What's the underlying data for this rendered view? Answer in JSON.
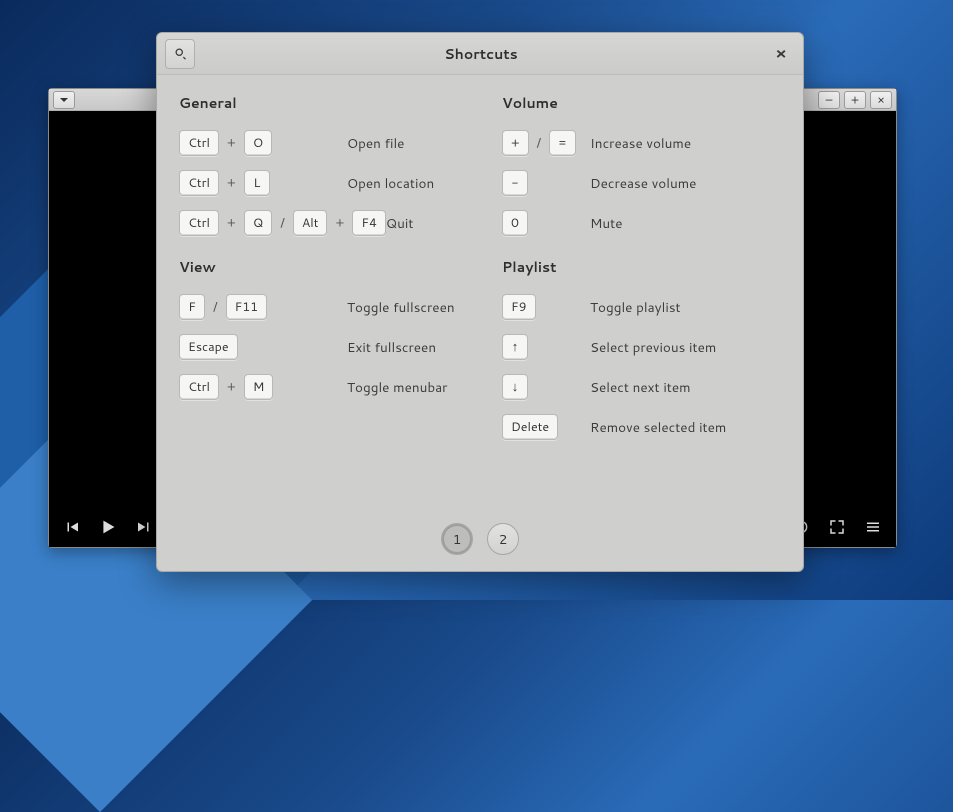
{
  "dialog": {
    "title": "Shortcuts",
    "pages": {
      "current": "1",
      "other": "2"
    },
    "left_sections": [
      {
        "title": "General",
        "rows": [
          {
            "keys": [
              {
                "cap": "Ctrl"
              },
              {
                "sep": "+"
              },
              {
                "cap": "O"
              }
            ],
            "desc": "Open file"
          },
          {
            "keys": [
              {
                "cap": "Ctrl"
              },
              {
                "sep": "+"
              },
              {
                "cap": "L"
              }
            ],
            "desc": "Open location"
          },
          {
            "keys": [
              {
                "cap": "Ctrl"
              },
              {
                "sep": "+"
              },
              {
                "cap": "Q"
              },
              {
                "sep": "/"
              },
              {
                "cap": "Alt"
              },
              {
                "sep": "+"
              },
              {
                "cap": "F4"
              }
            ],
            "desc": "Quit"
          }
        ]
      },
      {
        "title": "View",
        "rows": [
          {
            "keys": [
              {
                "cap": "F"
              },
              {
                "sep": "/"
              },
              {
                "cap": "F11"
              }
            ],
            "desc": "Toggle fullscreen"
          },
          {
            "keys": [
              {
                "cap": "Escape"
              }
            ],
            "desc": "Exit fullscreen"
          },
          {
            "keys": [
              {
                "cap": "Ctrl"
              },
              {
                "sep": "+"
              },
              {
                "cap": "M"
              }
            ],
            "desc": "Toggle menubar"
          }
        ]
      }
    ],
    "right_sections": [
      {
        "title": "Volume",
        "rows": [
          {
            "keys": [
              {
                "cap": "+"
              },
              {
                "sep": "/"
              },
              {
                "cap": "="
              }
            ],
            "desc": "Increase volume"
          },
          {
            "keys": [
              {
                "cap": "-"
              }
            ],
            "desc": "Decrease volume"
          },
          {
            "keys": [
              {
                "cap": "0"
              }
            ],
            "desc": "Mute"
          }
        ]
      },
      {
        "title": "Playlist",
        "rows": [
          {
            "keys": [
              {
                "cap": "F9"
              }
            ],
            "desc": "Toggle playlist"
          },
          {
            "keys": [
              {
                "cap": "↑"
              }
            ],
            "desc": "Select previous item"
          },
          {
            "keys": [
              {
                "cap": "↓"
              }
            ],
            "desc": "Select next item"
          },
          {
            "keys": [
              {
                "cap": "Delete"
              }
            ],
            "desc": "Remove selected item"
          }
        ]
      }
    ]
  },
  "player": {
    "window_buttons": {
      "minimize": "–",
      "maximize": "+",
      "close": "×"
    }
  }
}
